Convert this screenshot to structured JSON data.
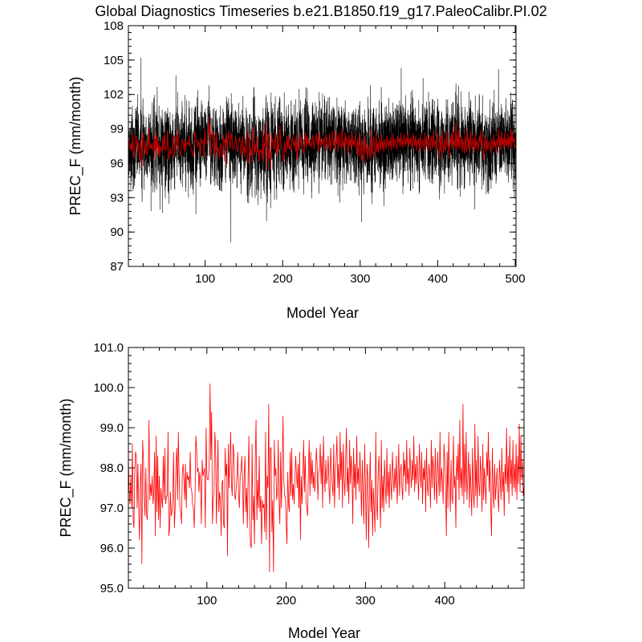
{
  "title": "Global Diagnostics Timeseries b.e21.B1850.f19_g17.PaleoCalibr.PI.02",
  "colors": {
    "monthly": "#000000",
    "annual_top": "#c00000",
    "annual_bottom": "#ff0000"
  },
  "chart_data": [
    {
      "type": "line",
      "title": "Global Diagnostics Timeseries b.e21.B1850.f19_g17.PaleoCalibr.PI.02",
      "xlabel": "Model Year",
      "ylabel": "PREC_F (mm/month)",
      "xlim": [
        1,
        501
      ],
      "ylim": [
        87,
        108
      ],
      "xticks": [
        100,
        200,
        300,
        400,
        500
      ],
      "yticks": [
        87,
        90,
        93,
        96,
        99,
        102,
        105,
        108
      ],
      "ytick_labels": [
        "87",
        "90",
        "93",
        "96",
        "99",
        "102",
        "105",
        "108"
      ],
      "grid": false,
      "series": [
        {
          "kind": "monthly",
          "color": "#000000",
          "points_per_year": 12,
          "mean": 97.6,
          "std": 1.75,
          "max": {
            "x": 17.3,
            "y": 105.2
          },
          "min": {
            "x": 132.8,
            "y": 89.1
          }
        },
        {
          "kind": "annual",
          "color": "#c00000",
          "x_start": 1,
          "values": [
            98.2,
            97.5,
            97.1,
            97.8,
            97.0,
            98.6,
            96.7,
            96.5,
            97.9,
            98.4,
            98.3,
            97.0,
            98.1,
            97.0,
            96.2,
            97.6,
            98.1,
            95.6,
            98.7,
            98.2,
            97.3,
            96.8,
            98.0,
            96.8,
            96.7,
            97.6,
            99.2,
            97.2,
            97.6,
            97.3,
            97.8,
            97.1,
            97.4,
            98.4,
            96.3,
            98.8,
            96.9,
            98.3,
            96.7,
            97.8,
            96.5,
            97.5,
            97.2,
            97.0,
            98.3,
            97.2,
            98.5,
            97.1,
            97.3,
            97.3,
            98.9,
            96.3,
            96.5,
            97.4,
            96.8,
            96.9,
            97.2,
            98.4,
            96.5,
            97.0,
            98.1,
            98.5,
            97.2,
            98.9,
            97.8,
            97.0,
            96.9,
            96.6,
            97.9,
            98.1,
            97.7,
            97.2,
            98.1,
            97.0,
            97.9,
            97.7,
            97.8,
            97.5,
            98.4,
            97.5,
            97.4,
            97.1,
            97.0,
            96.5,
            97.2,
            98.8,
            98.5,
            97.9,
            98.0,
            97.4,
            97.9,
            97.7,
            96.6,
            98.2,
            97.8,
            97.9,
            98.0,
            96.5,
            99.0,
            97.8,
            97.7,
            97.7,
            98.2,
            100.1,
            98.2,
            99.4,
            96.6,
            97.2,
            97.4,
            98.9,
            98.5,
            96.6,
            97.6,
            98.7,
            96.9,
            97.4,
            97.2,
            96.3,
            97.6,
            97.7,
            96.6,
            96.5,
            98.5,
            97.8,
            98.1,
            95.8,
            98.6,
            97.5,
            98.2,
            98.9,
            97.6,
            97.3,
            98.6,
            98.4,
            97.3,
            97.2,
            97.5,
            97.8,
            98.4,
            97.3,
            97.0,
            97.8,
            97.9,
            98.3,
            97.7,
            96.6,
            97.8,
            98.3,
            96.9,
            97.5,
            96.5,
            97.8,
            98.8,
            96.7,
            96.1,
            96.0,
            98.6,
            96.7,
            97.3,
            96.1,
            98.2,
            99.2,
            96.7,
            97.7,
            97.0,
            98.3,
            96.9,
            97.3,
            96.1,
            97.2,
            97.0,
            97.1,
            96.4,
            98.9,
            96.2,
            97.8,
            97.5,
            99.6,
            95.4,
            98.5,
            98.5,
            96.4,
            97.2,
            95.4,
            98.7,
            97.8,
            98.0,
            97.2,
            97.4,
            98.7,
            97.2,
            96.6,
            98.4,
            97.0,
            98.0,
            99.3,
            97.7,
            97.3,
            97.3,
            96.6,
            96.1,
            97.9,
            97.1,
            96.9,
            98.4,
            97.3,
            98.5,
            97.2,
            97.6,
            97.1,
            97.7,
            98.3,
            97.8,
            97.5,
            98.1,
            97.0,
            98.4,
            96.2,
            97.8,
            97.1,
            97.8,
            98.7,
            97.4,
            98.3,
            97.2,
            97.0,
            96.8,
            97.9,
            98.7,
            97.3,
            98.4,
            97.6,
            98.2,
            97.5,
            97.9,
            97.4,
            97.7,
            98.5,
            98.1,
            97.2,
            97.9,
            98.0,
            98.6,
            97.6,
            98.3,
            97.0,
            98.8,
            97.9,
            97.4,
            98.2,
            97.6,
            97.8,
            98.3,
            97.5,
            97.1,
            98.5,
            98.0,
            97.6,
            97.3,
            98.6,
            97.0,
            97.9,
            98.2,
            98.8,
            97.5,
            98.1,
            97.2,
            98.9,
            97.7,
            98.4,
            97.0,
            98.6,
            97.8,
            97.3,
            98.2,
            99.0,
            97.4,
            98.0,
            97.1,
            98.7,
            97.6,
            98.3,
            97.9,
            96.6,
            98.5,
            97.5,
            98.1,
            97.2,
            98.8,
            97.6,
            98.0,
            97.4,
            98.4,
            97.7,
            96.8,
            98.2,
            97.3,
            96.6,
            98.6,
            97.5,
            96.2,
            98.1,
            97.8,
            96.0,
            97.4,
            98.4,
            96.9,
            97.7,
            96.3,
            97.5,
            97.0,
            96.4,
            98.9,
            97.1,
            96.7,
            97.9,
            98.3,
            97.4,
            96.5,
            98.7,
            97.0,
            97.8,
            96.9,
            98.2,
            97.6,
            97.1,
            98.5,
            97.3,
            97.9,
            97.0,
            98.1,
            97.6,
            97.2,
            98.4,
            97.8,
            97.4,
            98.0,
            97.5,
            98.3,
            97.1,
            97.7,
            98.6,
            97.3,
            97.9,
            98.1,
            97.5,
            97.2,
            98.4,
            97.8,
            98.2,
            97.4,
            98.7,
            97.6,
            98.0,
            97.3,
            98.5,
            97.9,
            97.5,
            98.2,
            97.7,
            98.8,
            97.4,
            98.1,
            97.6,
            98.3,
            97.8,
            97.2,
            98.6,
            97.9,
            97.5,
            98.4,
            97.1,
            98.0,
            97.7,
            98.2,
            96.9,
            98.5,
            97.6,
            97.3,
            98.1,
            97.8,
            97.0,
            98.7,
            97.5,
            98.3,
            97.9,
            97.2,
            98.5,
            97.6,
            97.1,
            98.4,
            97.8,
            97.3,
            98.9,
            97.4,
            98.0,
            97.7,
            97.1,
            98.6,
            98.2,
            97.5,
            96.3,
            98.4,
            97.0,
            98.9,
            97.6,
            96.9,
            98.2,
            97.3,
            97.1,
            98.8,
            97.5,
            97.8,
            96.5,
            98.3,
            97.7,
            98.6,
            97.2,
            99.2,
            97.5,
            98.0,
            97.3,
            99.6,
            97.1,
            98.6,
            97.4,
            98.9,
            97.2,
            97.7,
            98.4,
            97.0,
            98.1,
            97.5,
            96.8,
            98.5,
            97.4,
            97.0,
            99.1,
            97.3,
            98.2,
            97.0,
            98.8,
            97.6,
            97.3,
            98.3,
            97.8,
            96.9,
            98.6,
            97.2,
            98.0,
            97.6,
            97.1,
            98.4,
            97.8,
            98.9,
            97.4,
            98.2,
            97.0,
            96.3,
            98.5,
            97.5,
            97.0,
            98.1,
            97.2,
            97.6,
            98.0,
            97.3,
            96.9,
            98.2,
            97.7,
            97.2,
            98.5,
            97.4,
            97.9,
            96.8,
            98.1,
            97.6,
            99.0,
            97.4,
            98.3,
            97.1,
            98.8,
            97.6,
            98.2,
            97.3,
            98.7,
            97.5,
            98.1,
            97.4,
            98.6,
            97.2,
            98.3,
            97.6,
            99.1,
            97.4,
            98.8,
            97.7,
            98.2,
            97.3,
            97.6
          ]
        }
      ]
    },
    {
      "type": "line",
      "xlabel": "Model Year",
      "ylabel": "PREC_F (mm/month)",
      "xlim": [
        1,
        500
      ],
      "ylim": [
        95.0,
        101.0
      ],
      "xticks": [
        100,
        200,
        300,
        400
      ],
      "yticks": [
        95.0,
        96.0,
        97.0,
        98.0,
        99.0,
        100.0,
        101.0
      ],
      "ytick_labels": [
        "95.0",
        "96.0",
        "97.0",
        "98.0",
        "99.0",
        "100.0",
        "101.0"
      ],
      "grid": false,
      "series": [
        {
          "kind": "annual",
          "color": "#ff0000",
          "values_ref": "same as annual series of first chart"
        }
      ]
    }
  ]
}
